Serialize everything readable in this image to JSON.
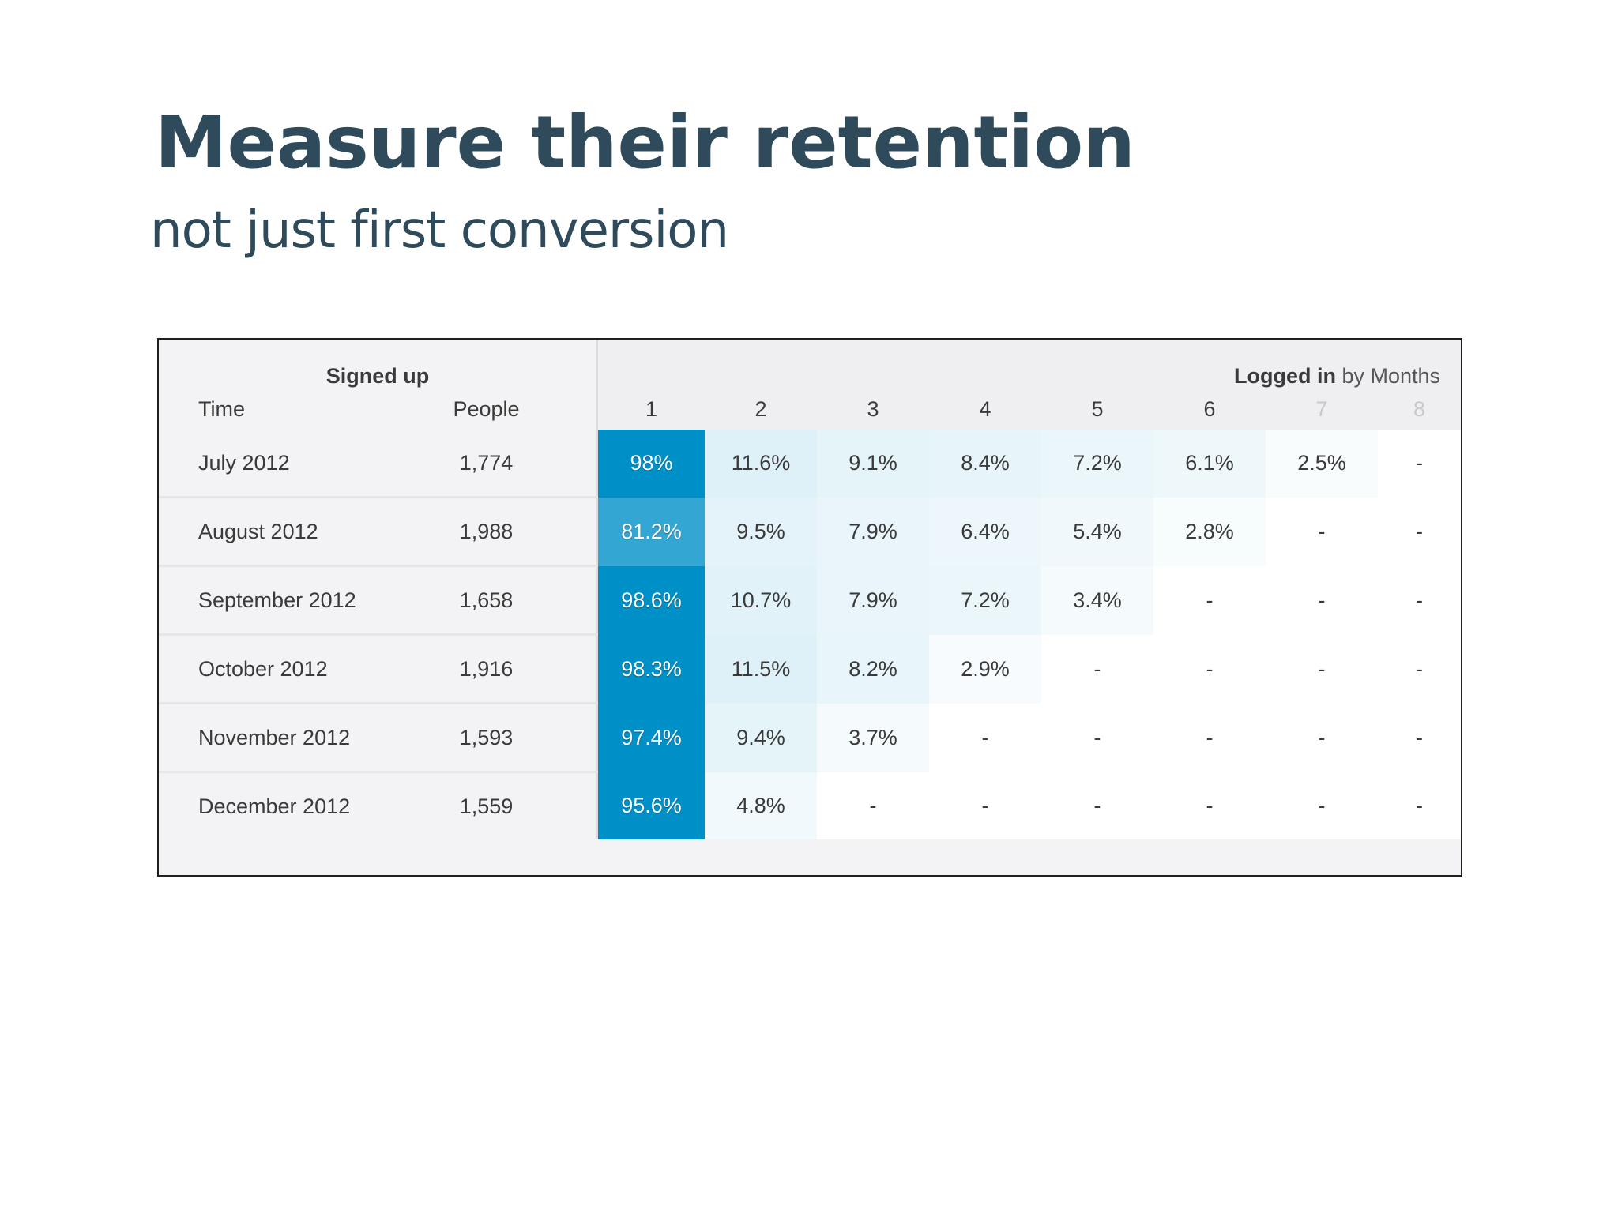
{
  "slide": {
    "title": "Measure their retention",
    "subtitle": "not just first conversion"
  },
  "cohort": {
    "signed_up_label": "Signed up",
    "logged_in_label": "Logged in",
    "by_months_label": "by Months",
    "time_header": "Time",
    "people_header": "People",
    "months": [
      "1",
      "2",
      "3",
      "4",
      "5",
      "6",
      "7",
      "8"
    ],
    "rows": [
      {
        "time": "July 2012",
        "people": "1,774",
        "values": [
          "98%",
          "11.6%",
          "9.1%",
          "8.4%",
          "7.2%",
          "6.1%",
          "2.5%",
          "-"
        ]
      },
      {
        "time": "August 2012",
        "people": "1,988",
        "values": [
          "81.2%",
          "9.5%",
          "7.9%",
          "6.4%",
          "5.4%",
          "2.8%",
          "-",
          "-"
        ]
      },
      {
        "time": "September 2012",
        "people": "1,658",
        "values": [
          "98.6%",
          "10.7%",
          "7.9%",
          "7.2%",
          "3.4%",
          "-",
          "-",
          "-"
        ]
      },
      {
        "time": "October 2012",
        "people": "1,916",
        "values": [
          "98.3%",
          "11.5%",
          "8.2%",
          "2.9%",
          "-",
          "-",
          "-",
          "-"
        ]
      },
      {
        "time": "November 2012",
        "people": "1,593",
        "values": [
          "97.4%",
          "9.4%",
          "3.7%",
          "-",
          "-",
          "-",
          "-",
          "-"
        ]
      },
      {
        "time": "December 2012",
        "people": "1,559",
        "values": [
          "95.6%",
          "4.8%",
          "-",
          "-",
          "-",
          "-",
          "-",
          "-"
        ]
      }
    ],
    "colors": {
      "heat_base": "#0090c8",
      "header_bg": "#efeef0",
      "label_bg": "#f3f2f4",
      "title_color": "#2e4a5b"
    }
  }
}
